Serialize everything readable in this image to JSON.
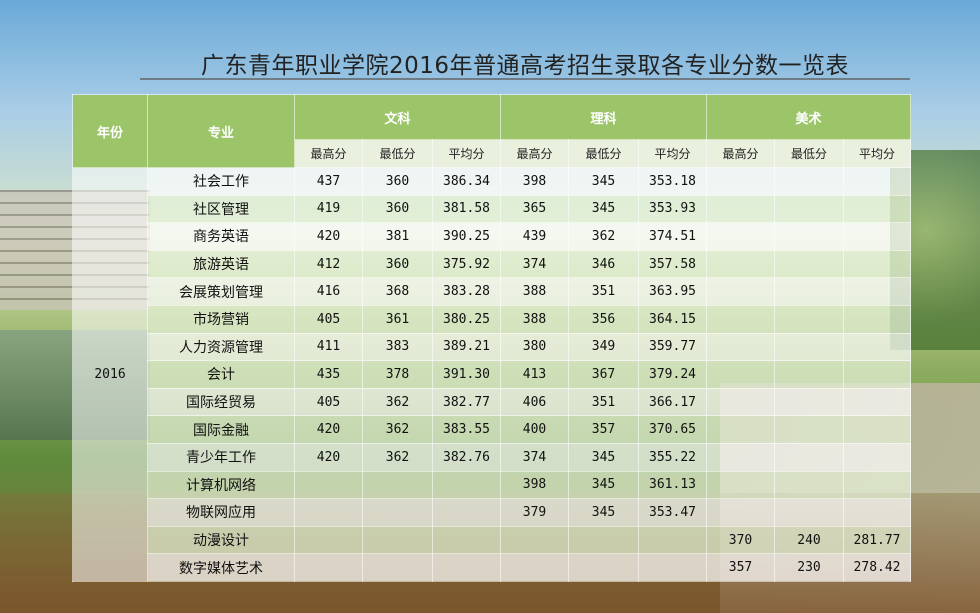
{
  "title": "广东青年职业学院2016年普通高考招生录取各专业分数一览表",
  "table": {
    "header": {
      "year": "年份",
      "major": "专业",
      "groups": [
        "文科",
        "理科",
        "美术"
      ],
      "sub": [
        "最高分",
        "最低分",
        "平均分"
      ]
    },
    "year": "2016",
    "rows": [
      {
        "major": "社会工作",
        "wen": [
          "437",
          "360",
          "386.34"
        ],
        "li": [
          "398",
          "345",
          "353.18"
        ],
        "mei": [
          "",
          "",
          ""
        ]
      },
      {
        "major": "社区管理",
        "wen": [
          "419",
          "360",
          "381.58"
        ],
        "li": [
          "365",
          "345",
          "353.93"
        ],
        "mei": [
          "",
          "",
          ""
        ]
      },
      {
        "major": "商务英语",
        "wen": [
          "420",
          "381",
          "390.25"
        ],
        "li": [
          "439",
          "362",
          "374.51"
        ],
        "mei": [
          "",
          "",
          ""
        ]
      },
      {
        "major": "旅游英语",
        "wen": [
          "412",
          "360",
          "375.92"
        ],
        "li": [
          "374",
          "346",
          "357.58"
        ],
        "mei": [
          "",
          "",
          ""
        ]
      },
      {
        "major": "会展策划管理",
        "wen": [
          "416",
          "368",
          "383.28"
        ],
        "li": [
          "388",
          "351",
          "363.95"
        ],
        "mei": [
          "",
          "",
          ""
        ]
      },
      {
        "major": "市场营销",
        "wen": [
          "405",
          "361",
          "380.25"
        ],
        "li": [
          "388",
          "356",
          "364.15"
        ],
        "mei": [
          "",
          "",
          ""
        ]
      },
      {
        "major": "人力资源管理",
        "wen": [
          "411",
          "383",
          "389.21"
        ],
        "li": [
          "380",
          "349",
          "359.77"
        ],
        "mei": [
          "",
          "",
          ""
        ]
      },
      {
        "major": "会计",
        "wen": [
          "435",
          "378",
          "391.30"
        ],
        "li": [
          "413",
          "367",
          "379.24"
        ],
        "mei": [
          "",
          "",
          ""
        ]
      },
      {
        "major": "国际经贸易",
        "wen": [
          "405",
          "362",
          "382.77"
        ],
        "li": [
          "406",
          "351",
          "366.17"
        ],
        "mei": [
          "",
          "",
          ""
        ]
      },
      {
        "major": "国际金融",
        "wen": [
          "420",
          "362",
          "383.55"
        ],
        "li": [
          "400",
          "357",
          "370.65"
        ],
        "mei": [
          "",
          "",
          ""
        ]
      },
      {
        "major": "青少年工作",
        "wen": [
          "420",
          "362",
          "382.76"
        ],
        "li": [
          "374",
          "345",
          "355.22"
        ],
        "mei": [
          "",
          "",
          ""
        ]
      },
      {
        "major": "计算机网络",
        "wen": [
          "",
          "",
          ""
        ],
        "li": [
          "398",
          "345",
          "361.13"
        ],
        "mei": [
          "",
          "",
          ""
        ]
      },
      {
        "major": "物联网应用",
        "wen": [
          "",
          "",
          ""
        ],
        "li": [
          "379",
          "345",
          "353.47"
        ],
        "mei": [
          "",
          "",
          ""
        ]
      },
      {
        "major": "动漫设计",
        "wen": [
          "",
          "",
          ""
        ],
        "li": [
          "",
          "",
          ""
        ],
        "mei": [
          "370",
          "240",
          "281.77"
        ]
      },
      {
        "major": "数字媒体艺术",
        "wen": [
          "",
          "",
          ""
        ],
        "li": [
          "",
          "",
          ""
        ],
        "mei": [
          "357",
          "230",
          "278.42"
        ]
      }
    ]
  }
}
